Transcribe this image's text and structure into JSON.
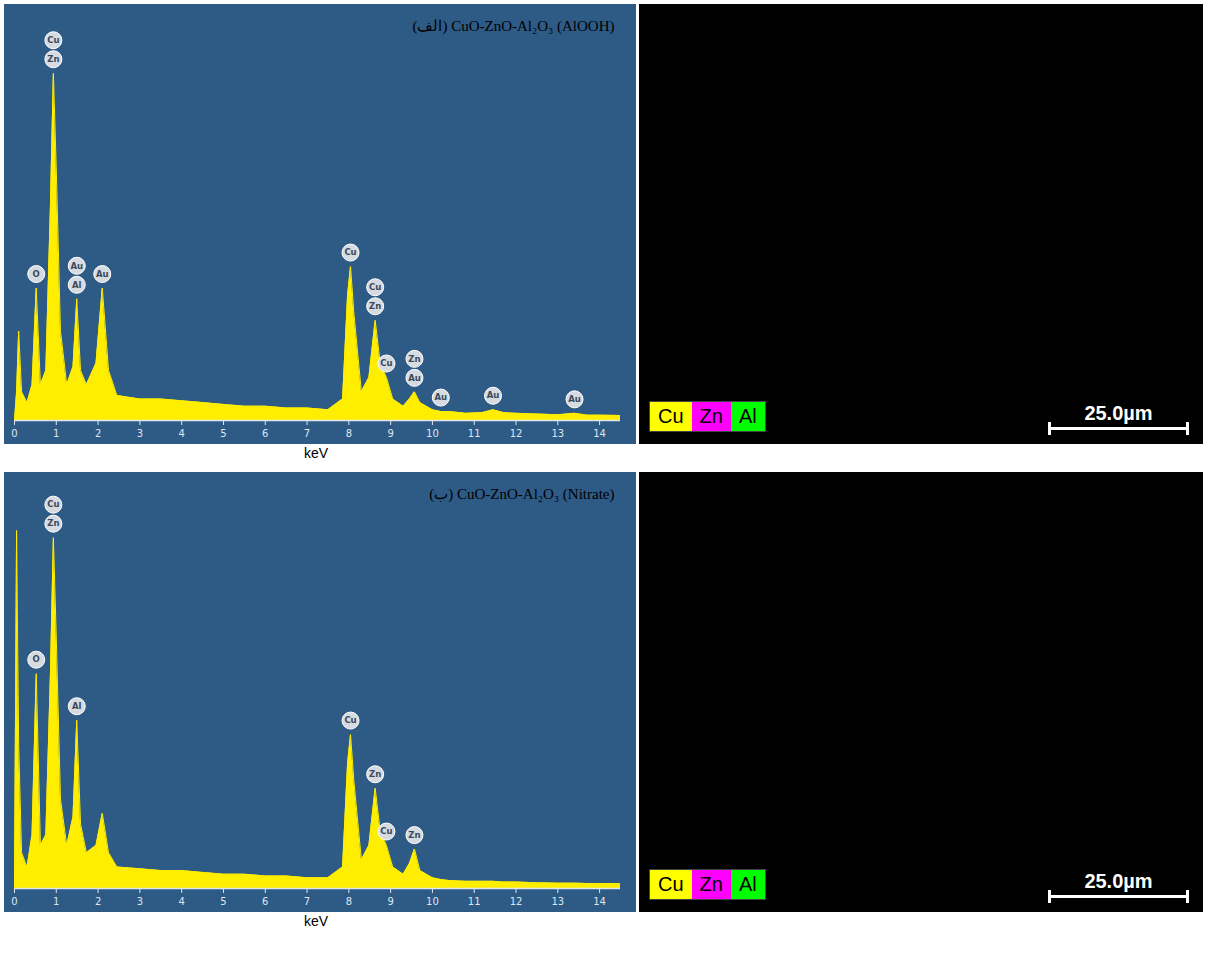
{
  "chart_data": [
    {
      "type": "area",
      "title": "(الف) CuO-ZnO-Al₂O₃ (AlOOH)",
      "x_label": "keV",
      "color": "#ffee00",
      "xlim": [
        0,
        14.5
      ],
      "xticks": [
        0,
        1,
        2,
        3,
        4,
        5,
        6,
        7,
        8,
        9,
        10,
        11,
        12,
        13,
        14
      ],
      "ylim": [
        0,
        100
      ],
      "tick_labels": "x",
      "grid": false,
      "x": [
        0,
        0.05,
        0.1,
        0.17,
        0.3,
        0.42,
        0.52,
        0.62,
        0.75,
        0.86,
        0.93,
        1.0,
        1.1,
        1.25,
        1.4,
        1.49,
        1.58,
        1.72,
        1.95,
        2.1,
        2.25,
        2.45,
        3.0,
        3.5,
        4.0,
        4.5,
        5.0,
        5.5,
        6.0,
        6.5,
        7.0,
        7.5,
        7.85,
        7.97,
        8.04,
        8.12,
        8.3,
        8.48,
        8.63,
        8.75,
        8.9,
        9.05,
        9.3,
        9.45,
        9.57,
        9.7,
        10.0,
        10.2,
        10.4,
        10.8,
        11.2,
        11.45,
        11.7,
        12.0,
        12.5,
        13.0,
        13.4,
        13.7,
        14.0,
        14.5
      ],
      "values": [
        0,
        8,
        25,
        8,
        5,
        10,
        37,
        10,
        14,
        60,
        97,
        70,
        25,
        10,
        15,
        34,
        14,
        10,
        16,
        37,
        14,
        7,
        6,
        6,
        5.5,
        5,
        4.5,
        4,
        4,
        3.5,
        3.5,
        3,
        6,
        35,
        43,
        30,
        8,
        12,
        28,
        16,
        12,
        6,
        4,
        6,
        8,
        5,
        3,
        2.5,
        2.5,
        2,
        2.2,
        3,
        2.2,
        2,
        1.8,
        1.6,
        2,
        1.5,
        1.5,
        1.4
      ],
      "peaks": [
        {
          "x": 0.52,
          "labels": [
            "O"
          ]
        },
        {
          "x": 0.93,
          "labels": [
            "Zn",
            "Cu"
          ]
        },
        {
          "x": 1.49,
          "labels": [
            "Al",
            "Au"
          ]
        },
        {
          "x": 2.1,
          "labels": [
            "Au"
          ]
        },
        {
          "x": 8.04,
          "labels": [
            "Cu"
          ]
        },
        {
          "x": 8.63,
          "labels": [
            "Zn",
            "Cu"
          ]
        },
        {
          "x": 8.9,
          "labels": [
            "Cu"
          ]
        },
        {
          "x": 9.57,
          "labels": [
            "Au",
            "Zn"
          ]
        },
        {
          "x": 10.2,
          "labels": [
            "Au"
          ]
        },
        {
          "x": 11.45,
          "labels": [
            "Au"
          ]
        },
        {
          "x": 13.4,
          "labels": [
            "Au"
          ]
        }
      ],
      "map": {
        "legend": [
          {
            "name": "Cu",
            "color": "#ffff00"
          },
          {
            "name": "Zn",
            "color": "#ff00ff"
          },
          {
            "name": "Al",
            "color": "#00ff00"
          }
        ],
        "scale_bar": {
          "label": "25.0µm",
          "length": 25
        },
        "field_width": 100
      }
    },
    {
      "type": "area",
      "title": "(ب) CuO-ZnO-Al₂O₃ (Nitrate)",
      "x_label": "keV",
      "color": "#ffee00",
      "xlim": [
        0,
        14.5
      ],
      "xticks": [
        0,
        1,
        2,
        3,
        4,
        5,
        6,
        7,
        8,
        9,
        10,
        11,
        12,
        13,
        14
      ],
      "ylim": [
        0,
        100
      ],
      "tick_labels": "x",
      "grid": false,
      "x": [
        0,
        0.05,
        0.1,
        0.17,
        0.3,
        0.42,
        0.52,
        0.62,
        0.75,
        0.86,
        0.93,
        1.0,
        1.1,
        1.25,
        1.4,
        1.49,
        1.58,
        1.72,
        1.95,
        2.1,
        2.25,
        2.45,
        3.0,
        3.5,
        4.0,
        4.5,
        5.0,
        5.5,
        6.0,
        6.5,
        7.0,
        7.5,
        7.85,
        7.97,
        8.04,
        8.12,
        8.3,
        8.48,
        8.63,
        8.75,
        8.9,
        9.05,
        9.3,
        9.45,
        9.57,
        9.7,
        10.0,
        10.2,
        10.4,
        10.8,
        11.2,
        11.45,
        11.7,
        12.0,
        12.5,
        13.0,
        13.4,
        13.7,
        14.0,
        14.5
      ],
      "values": [
        0,
        100,
        40,
        10,
        6,
        15,
        60,
        12,
        15,
        60,
        98,
        70,
        25,
        12,
        20,
        47,
        18,
        10,
        12,
        21,
        10,
        6,
        5.5,
        5,
        5,
        4.5,
        4,
        4,
        3.5,
        3.5,
        3,
        3,
        6,
        35,
        43,
        30,
        8,
        12,
        28,
        16,
        12,
        6,
        4,
        7,
        11,
        5,
        3,
        2.5,
        2.2,
        2,
        2,
        2,
        1.8,
        1.8,
        1.6,
        1.5,
        1.5,
        1.4,
        1.4,
        1.3
      ],
      "peaks": [
        {
          "x": 0.52,
          "labels": [
            "O"
          ]
        },
        {
          "x": 0.93,
          "labels": [
            "Zn",
            "Cu"
          ]
        },
        {
          "x": 1.49,
          "labels": [
            "Al"
          ]
        },
        {
          "x": 8.04,
          "labels": [
            "Cu"
          ]
        },
        {
          "x": 8.63,
          "labels": [
            "Zn"
          ]
        },
        {
          "x": 8.9,
          "labels": [
            "Cu"
          ]
        },
        {
          "x": 9.57,
          "labels": [
            "Zn"
          ]
        }
      ],
      "map": {
        "legend": [
          {
            "name": "Cu",
            "color": "#ffff00"
          },
          {
            "name": "Zn",
            "color": "#ff00ff"
          },
          {
            "name": "Al",
            "color": "#00ff00"
          }
        ],
        "scale_bar": {
          "label": "25.0µm",
          "length": 25
        },
        "field_width": 100
      }
    }
  ]
}
